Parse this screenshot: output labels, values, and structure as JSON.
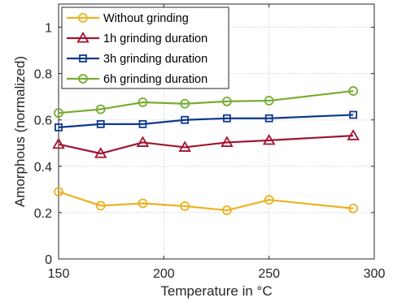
{
  "chart_data": {
    "type": "line",
    "xlabel": "Temperature in °C",
    "ylabel": "Amorphous (normalized)",
    "xlim": [
      150,
      300
    ],
    "ylim": [
      0,
      1.1
    ],
    "xticks": [
      150,
      200,
      250,
      300
    ],
    "yticks": [
      0,
      0.2,
      0.4,
      0.6,
      0.8,
      1
    ],
    "ytick_labels": [
      "0",
      "0.2",
      "0.4",
      "0.6",
      "0.8",
      "1"
    ],
    "grid": true,
    "legend_position": "top-left",
    "x": [
      150,
      170,
      190,
      210,
      230,
      250,
      290
    ],
    "series": [
      {
        "name": "Without grinding",
        "color": "#EDB120",
        "marker": "circle",
        "values": [
          0.29,
          0.23,
          0.24,
          0.228,
          0.21,
          0.255,
          0.218
        ]
      },
      {
        "name": "1h grinding duration",
        "color": "#A2142F",
        "marker": "triangle",
        "values": [
          0.495,
          0.455,
          0.503,
          0.482,
          0.503,
          0.512,
          0.532
        ]
      },
      {
        "name": "3h grinding duration",
        "color": "#0E3A8C",
        "marker": "square",
        "values": [
          0.568,
          0.582,
          0.582,
          0.6,
          0.607,
          0.607,
          0.622
        ]
      },
      {
        "name": "6h grinding duration",
        "color": "#77AC30",
        "marker": "circle",
        "values": [
          0.63,
          0.646,
          0.676,
          0.67,
          0.68,
          0.683,
          0.725
        ]
      }
    ]
  }
}
